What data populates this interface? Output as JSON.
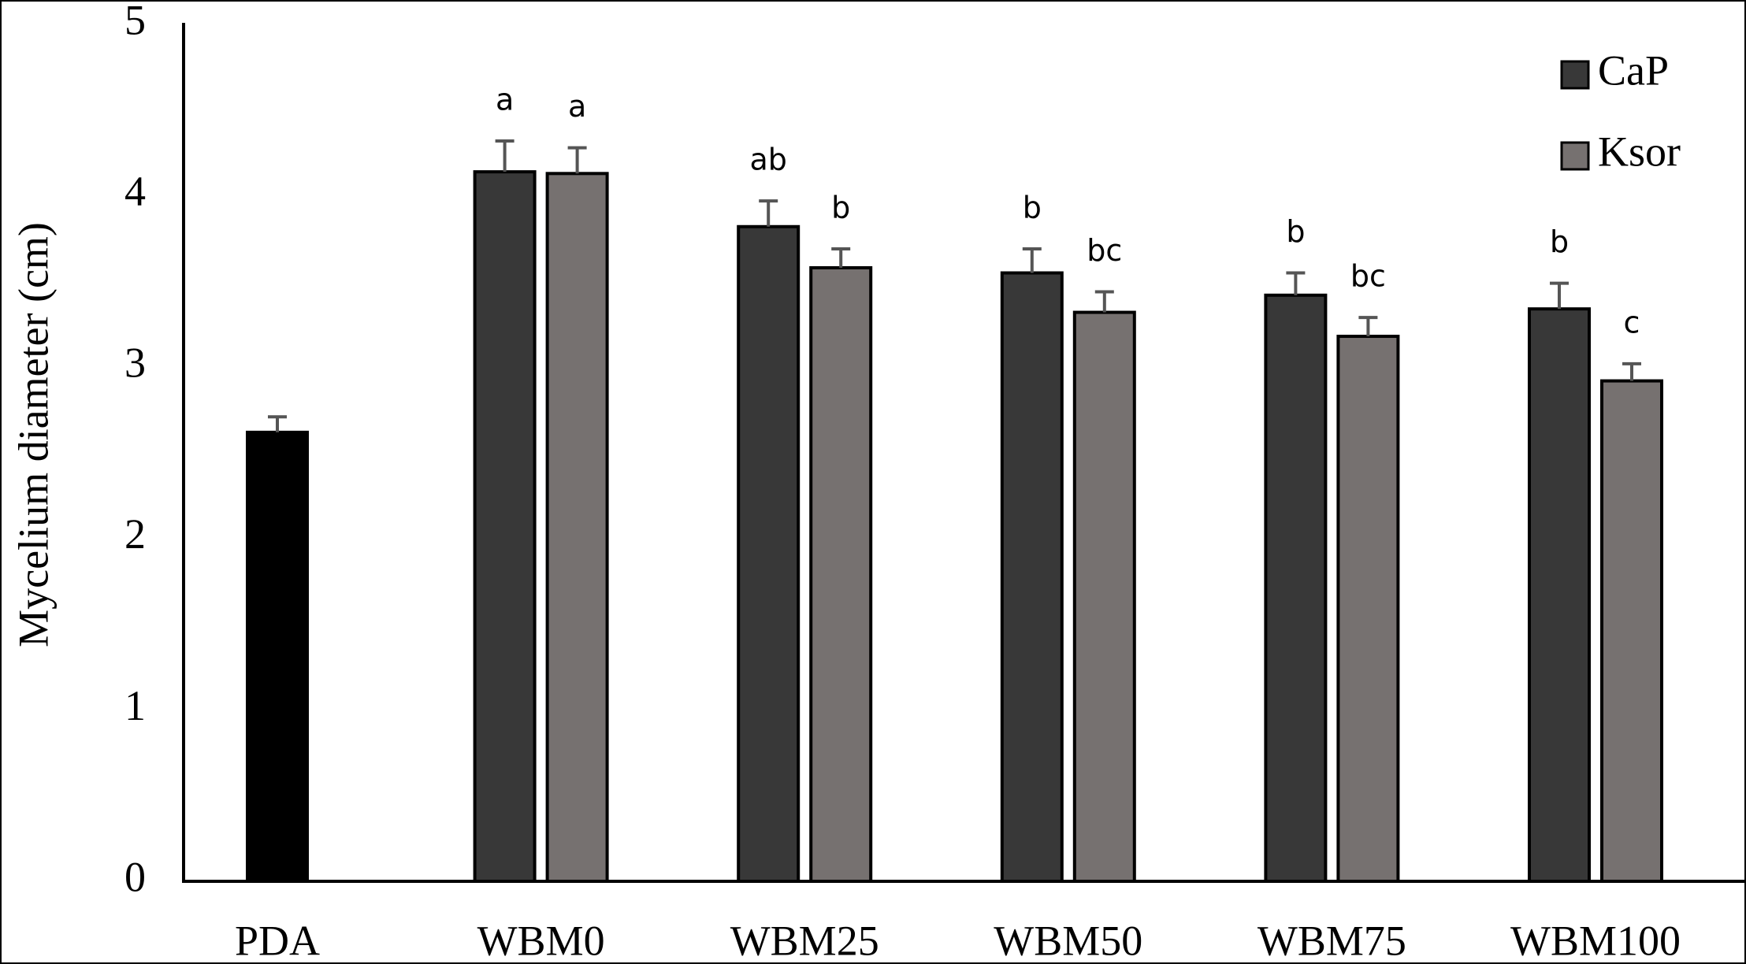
{
  "chart_data": {
    "type": "bar",
    "ylabel": "Mycelium diameter (cm)",
    "categories": [
      "PDA",
      "WBM0",
      "WBM25",
      "WBM50",
      "WBM75",
      "WBM100"
    ],
    "series": [
      {
        "color": "#000000",
        "values": [
          2.62,
          null,
          null,
          null,
          null,
          null
        ],
        "errors": [
          0.09,
          null,
          null,
          null,
          null,
          null
        ]
      },
      {
        "name": "CaP",
        "color": "#383838",
        "values": [
          null,
          4.14,
          3.82,
          3.55,
          3.42,
          3.34
        ],
        "errors": [
          null,
          0.18,
          0.15,
          0.14,
          0.13,
          0.15
        ],
        "labels": [
          null,
          "a",
          "ab",
          "b",
          "b",
          "b"
        ]
      },
      {
        "name": "Ksor",
        "color": "#767170",
        "values": [
          null,
          4.13,
          3.58,
          3.32,
          3.18,
          2.92
        ],
        "errors": [
          null,
          0.15,
          0.11,
          0.12,
          0.11,
          0.1
        ],
        "labels": [
          null,
          "a",
          "b",
          "bc",
          "bc",
          "c"
        ]
      }
    ],
    "ylim": [
      0,
      5
    ],
    "yticks": [
      0,
      1,
      2,
      3,
      4,
      5
    ],
    "grid": false,
    "legend": "upper right"
  }
}
